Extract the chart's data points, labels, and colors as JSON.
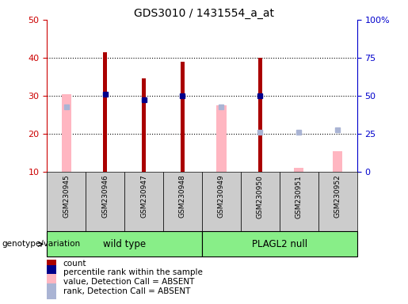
{
  "title": "GDS3010 / 1431554_a_at",
  "samples": [
    "GSM230945",
    "GSM230946",
    "GSM230947",
    "GSM230948",
    "GSM230949",
    "GSM230950",
    "GSM230951",
    "GSM230952"
  ],
  "count_values": [
    null,
    41.5,
    34.5,
    39.0,
    null,
    40.0,
    null,
    null
  ],
  "rank_values": [
    null,
    30.5,
    29.0,
    30.0,
    null,
    30.0,
    null,
    null
  ],
  "absent_value": [
    30.5,
    null,
    null,
    null,
    27.5,
    null,
    11.0,
    15.5
  ],
  "absent_rank": [
    27.0,
    null,
    null,
    null,
    27.0,
    20.5,
    20.5,
    21.0
  ],
  "left_ylim": [
    10,
    50
  ],
  "left_yticks": [
    10,
    20,
    30,
    40,
    50
  ],
  "right_ylim": [
    0,
    100
  ],
  "right_yticks": [
    0,
    25,
    50,
    75,
    100
  ],
  "right_yticklabels": [
    "0",
    "25",
    "50",
    "75",
    "100%"
  ],
  "left_color": "#cc0000",
  "right_color": "#0000cc",
  "absent_val_color": "#ffb6c1",
  "absent_rank_color": "#aab4d4",
  "count_color": "#aa0000",
  "rank_color": "#00008b",
  "bg_color": "#cccccc",
  "plot_bg": "#ffffff",
  "grid_color": "black",
  "title_fontsize": 10,
  "wt_group": [
    0,
    1,
    2,
    3
  ],
  "pl_group": [
    4,
    5,
    6,
    7
  ],
  "wt_label": "wild type",
  "pl_label": "PLAGL2 null",
  "group_color": "#88ee88",
  "legend_items": [
    {
      "color": "#aa0000",
      "label": "count"
    },
    {
      "color": "#00008b",
      "label": "percentile rank within the sample"
    },
    {
      "color": "#ffb6c1",
      "label": "value, Detection Call = ABSENT"
    },
    {
      "color": "#aab4d4",
      "label": "rank, Detection Call = ABSENT"
    }
  ]
}
